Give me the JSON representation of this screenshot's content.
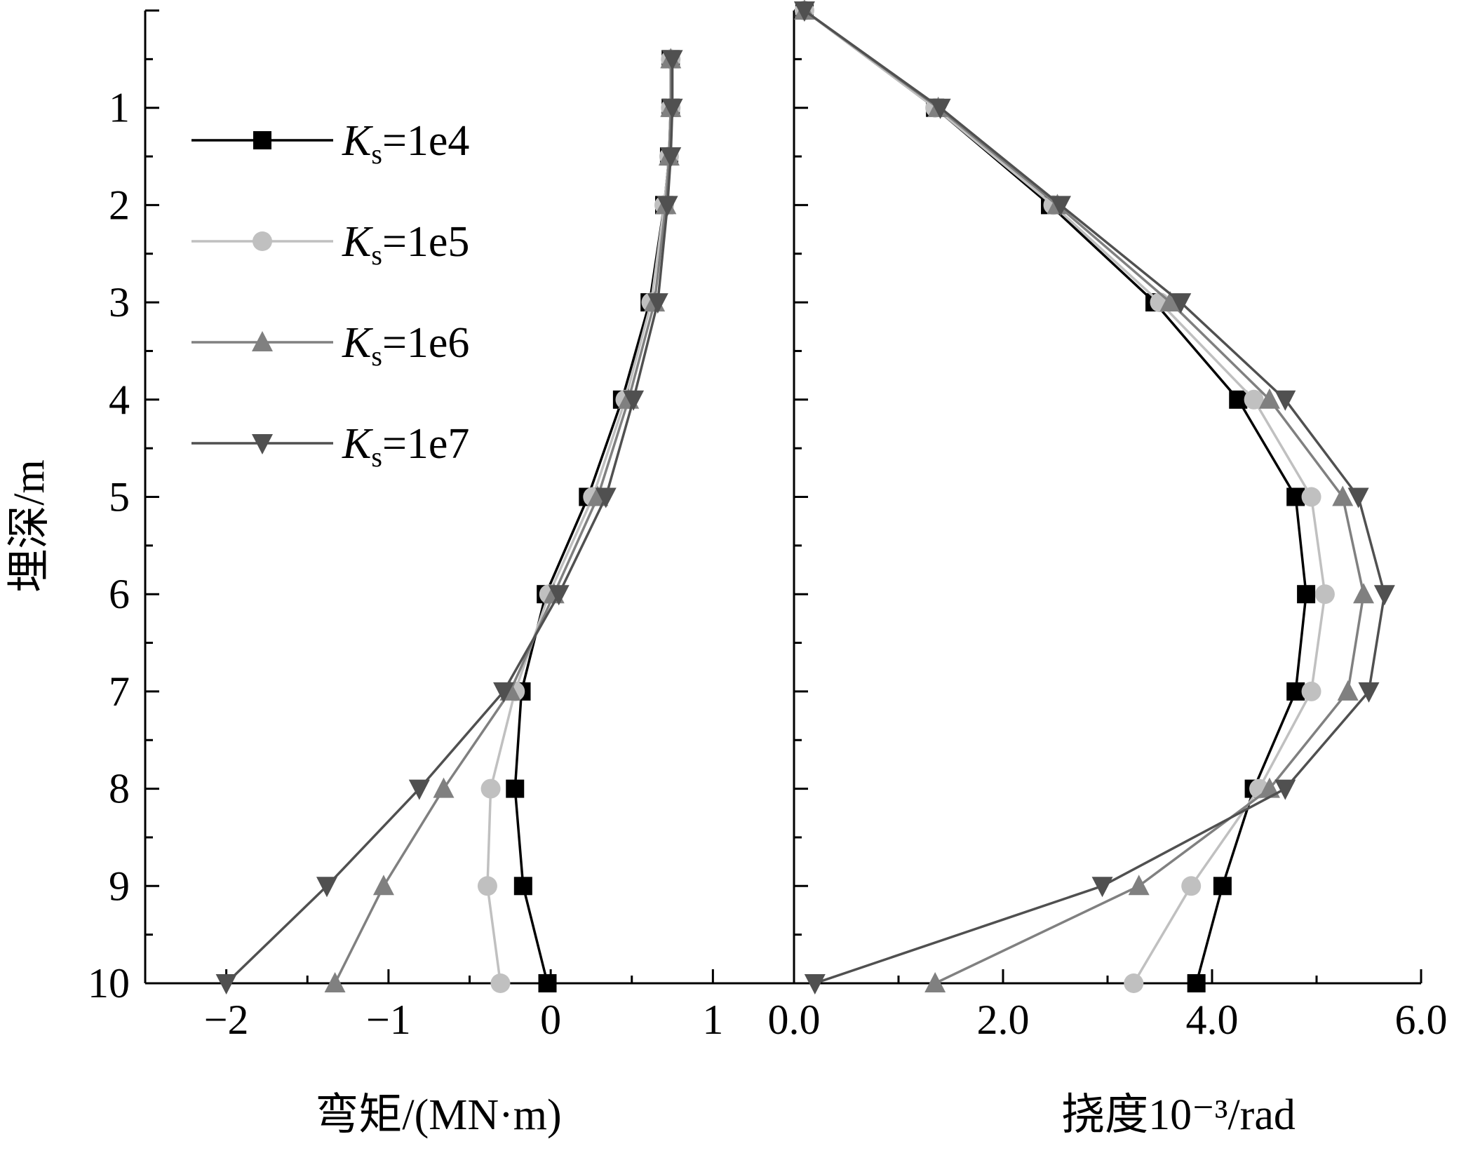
{
  "chart_data": [
    {
      "type": "line",
      "xlabel": "弯矩/(MN·m)",
      "ylabel": "埋深/m",
      "xlim": [
        -2.5,
        1.5
      ],
      "ylim": [
        10,
        0
      ],
      "x_ticks": [
        "−2",
        "−1",
        "0",
        "1"
      ],
      "y_ticks": [
        "1",
        "2",
        "3",
        "4",
        "5",
        "6",
        "7",
        "8",
        "9",
        "10"
      ],
      "grid": false,
      "legend_position": "top-left",
      "y": [
        0.5,
        1,
        1.5,
        2,
        3,
        4,
        5,
        6,
        7,
        8,
        9,
        10
      ],
      "series": [
        {
          "name": "Ks=1e4",
          "legend_italic": "K",
          "legend_sub": "s",
          "legend_rest": "=1e4",
          "color": "#000000",
          "marker": "square",
          "x": [
            0.74,
            0.74,
            0.73,
            0.7,
            0.61,
            0.44,
            0.23,
            -0.03,
            -0.18,
            -0.22,
            -0.17,
            -0.02
          ]
        },
        {
          "name": "Ks=1e5",
          "legend_italic": "K",
          "legend_sub": "s",
          "legend_rest": "=1e5",
          "color": "#c0c0c0",
          "marker": "circle",
          "x": [
            0.74,
            0.74,
            0.73,
            0.7,
            0.62,
            0.46,
            0.26,
            -0.01,
            -0.22,
            -0.37,
            -0.39,
            -0.31
          ]
        },
        {
          "name": "Ks=1e6",
          "legend_italic": "K",
          "legend_sub": "s",
          "legend_rest": "=1e6",
          "color": "#808080",
          "marker": "triangle-up",
          "x": [
            0.74,
            0.74,
            0.73,
            0.71,
            0.64,
            0.48,
            0.29,
            0.02,
            -0.25,
            -0.66,
            -1.03,
            -1.33
          ]
        },
        {
          "name": "Ks=1e7",
          "legend_italic": "K",
          "legend_sub": "s",
          "legend_rest": "=1e7",
          "color": "#505050",
          "marker": "triangle-down",
          "x": [
            0.75,
            0.75,
            0.74,
            0.72,
            0.66,
            0.51,
            0.34,
            0.05,
            -0.29,
            -0.81,
            -1.38,
            -2.0
          ]
        }
      ]
    },
    {
      "type": "line",
      "xlabel": "挠度10⁻³/rad",
      "ylabel": "",
      "xlim": [
        0.0,
        6.0
      ],
      "ylim": [
        10,
        0
      ],
      "x_ticks": [
        "0.0",
        "2.0",
        "4.0",
        "6.0"
      ],
      "grid": false,
      "y": [
        0,
        1,
        2,
        3,
        4,
        5,
        6,
        7,
        8,
        9,
        10
      ],
      "series": [
        {
          "name": "Ks=1e4",
          "color": "#000000",
          "marker": "square",
          "x": [
            0.1,
            1.35,
            2.45,
            3.45,
            4.25,
            4.8,
            4.9,
            4.8,
            4.4,
            4.1,
            3.85
          ]
        },
        {
          "name": "Ks=1e5",
          "color": "#c0c0c0",
          "marker": "circle",
          "x": [
            0.1,
            1.35,
            2.48,
            3.5,
            4.4,
            4.95,
            5.08,
            4.95,
            4.45,
            3.8,
            3.25
          ]
        },
        {
          "name": "Ks=1e6",
          "color": "#808080",
          "marker": "triangle-up",
          "x": [
            0.1,
            1.38,
            2.52,
            3.6,
            4.55,
            5.25,
            5.45,
            5.3,
            4.55,
            3.3,
            1.35
          ]
        },
        {
          "name": "Ks=1e7",
          "color": "#505050",
          "marker": "triangle-down",
          "x": [
            0.1,
            1.4,
            2.55,
            3.7,
            4.7,
            5.4,
            5.65,
            5.5,
            4.7,
            2.95,
            0.2
          ]
        }
      ]
    }
  ]
}
